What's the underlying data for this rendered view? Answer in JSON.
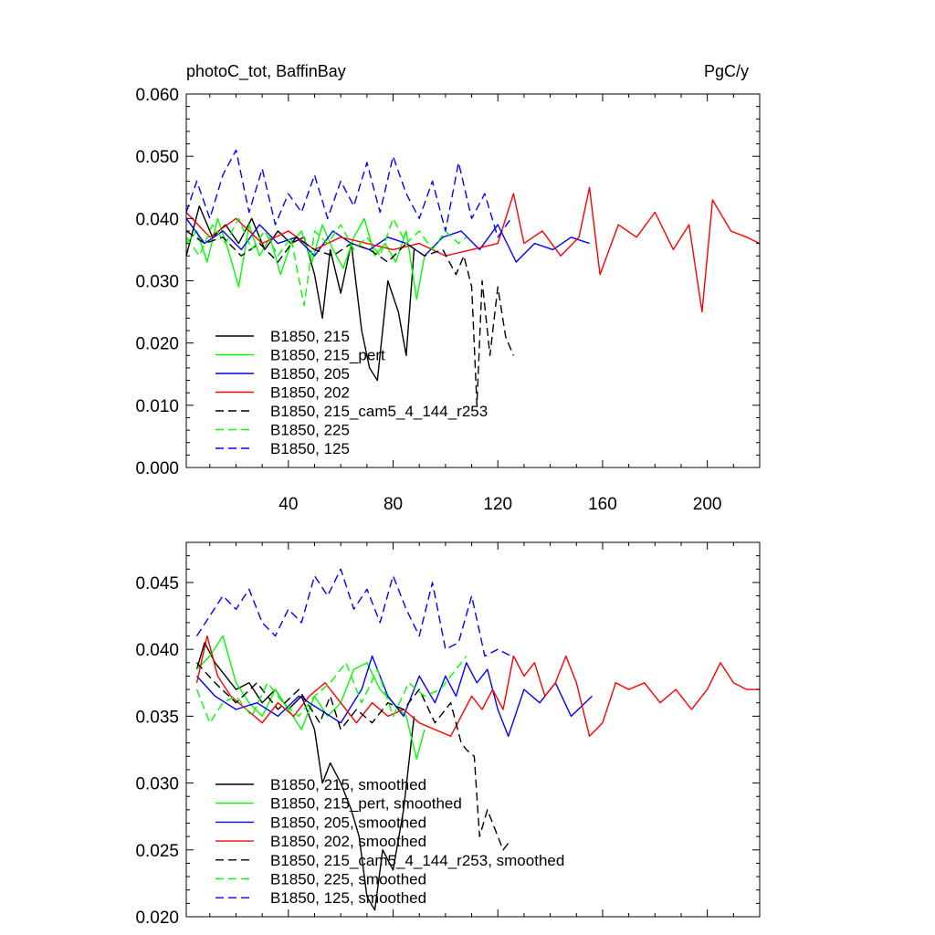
{
  "figure": {
    "title_left": "photoC_tot, BaffinBay",
    "title_right": "PgC/y"
  },
  "chart_data": [
    {
      "type": "line",
      "title": "photoC_tot, BaffinBay",
      "units_label": "PgC/y",
      "xlabel": "",
      "ylabel": "",
      "xlim": [
        1,
        220
      ],
      "ylim": [
        0.0,
        0.06
      ],
      "x_ticks": [
        40,
        80,
        120,
        160,
        200
      ],
      "x_tick_labels": [
        "40",
        "80",
        "120",
        "160",
        "200"
      ],
      "y_ticks": [
        0.0,
        0.01,
        0.02,
        0.03,
        0.04,
        0.05,
        0.06
      ],
      "y_tick_labels": [
        "0.000",
        "0.010",
        "0.020",
        "0.030",
        "0.040",
        "0.050",
        "0.060"
      ],
      "grid": false,
      "legend_position": "bottom-left",
      "series": [
        {
          "name": "B1850, 215",
          "color": "#000000",
          "dash": "solid",
          "x": [
            1,
            6,
            11,
            16,
            21,
            26,
            31,
            36,
            41,
            46,
            50,
            53,
            56,
            60,
            64,
            68,
            71,
            74,
            78,
            82,
            85,
            88
          ],
          "y": [
            0.034,
            0.042,
            0.037,
            0.039,
            0.036,
            0.04,
            0.035,
            0.038,
            0.036,
            0.037,
            0.031,
            0.024,
            0.035,
            0.028,
            0.036,
            0.022,
            0.016,
            0.014,
            0.03,
            0.025,
            0.018,
            0.035
          ]
        },
        {
          "name": "B1850, 215_pert",
          "color": "#00ff00",
          "dash": "solid",
          "x": [
            1,
            5,
            9,
            13,
            17,
            21,
            25,
            29,
            33,
            37,
            41,
            45,
            49,
            53,
            57,
            61,
            65,
            69,
            73,
            77,
            81,
            85,
            89,
            92
          ],
          "y": [
            0.036,
            0.038,
            0.033,
            0.04,
            0.035,
            0.029,
            0.039,
            0.034,
            0.037,
            0.031,
            0.036,
            0.038,
            0.033,
            0.039,
            0.035,
            0.032,
            0.037,
            0.04,
            0.034,
            0.036,
            0.033,
            0.038,
            0.027,
            0.034
          ]
        },
        {
          "name": "B1850, 205",
          "color": "#0000ff",
          "dash": "solid",
          "x": [
            1,
            8,
            15,
            22,
            29,
            36,
            43,
            50,
            57,
            64,
            71,
            78,
            85,
            92,
            99,
            106,
            113,
            120,
            127,
            134,
            141,
            148,
            155
          ],
          "y": [
            0.04,
            0.036,
            0.038,
            0.035,
            0.039,
            0.036,
            0.037,
            0.034,
            0.038,
            0.036,
            0.035,
            0.037,
            0.036,
            0.034,
            0.037,
            0.038,
            0.035,
            0.039,
            0.033,
            0.036,
            0.035,
            0.037,
            0.036
          ]
        },
        {
          "name": "B1850, 202",
          "color": "#ff0000",
          "dash": "solid",
          "x": [
            1,
            10,
            20,
            30,
            40,
            50,
            60,
            70,
            80,
            90,
            100,
            110,
            120,
            126,
            130,
            137,
            144,
            151,
            155,
            159,
            166,
            173,
            180,
            187,
            193,
            198,
            202,
            209,
            215,
            220
          ],
          "y": [
            0.041,
            0.037,
            0.04,
            0.036,
            0.038,
            0.035,
            0.037,
            0.036,
            0.035,
            0.036,
            0.034,
            0.035,
            0.036,
            0.044,
            0.036,
            0.038,
            0.034,
            0.037,
            0.045,
            0.031,
            0.039,
            0.037,
            0.041,
            0.035,
            0.039,
            0.025,
            0.043,
            0.038,
            0.037,
            0.036
          ]
        },
        {
          "name": "B1850, 215_cam5_4_144_r253",
          "color": "#000000",
          "dash": "dashed",
          "x": [
            1,
            8,
            15,
            22,
            29,
            36,
            43,
            50,
            57,
            64,
            71,
            78,
            85,
            92,
            99,
            104,
            107,
            110,
            112,
            114,
            117,
            120,
            123,
            126
          ],
          "y": [
            0.038,
            0.036,
            0.037,
            0.034,
            0.036,
            0.033,
            0.037,
            0.035,
            0.034,
            0.036,
            0.035,
            0.033,
            0.036,
            0.034,
            0.035,
            0.031,
            0.034,
            0.029,
            0.01,
            0.03,
            0.018,
            0.029,
            0.021,
            0.018
          ]
        },
        {
          "name": "B1850, 225",
          "color": "#00ff00",
          "dash": "dashed",
          "x": [
            1,
            6,
            11,
            16,
            21,
            26,
            31,
            36,
            41,
            46,
            50,
            55,
            60,
            65,
            70,
            75,
            80,
            85,
            90,
            95,
            100,
            105,
            108
          ],
          "y": [
            0.037,
            0.034,
            0.039,
            0.036,
            0.04,
            0.035,
            0.038,
            0.034,
            0.037,
            0.026,
            0.038,
            0.036,
            0.039,
            0.035,
            0.037,
            0.034,
            0.04,
            0.036,
            0.038,
            0.035,
            0.038,
            0.036,
            0.037
          ]
        },
        {
          "name": "B1850, 125",
          "color": "#0000ff",
          "dash": "dashed",
          "x": [
            1,
            5,
            10,
            15,
            20,
            25,
            30,
            35,
            40,
            45,
            50,
            55,
            60,
            65,
            70,
            75,
            80,
            85,
            90,
            95,
            100,
            105,
            110,
            115,
            120,
            125
          ],
          "y": [
            0.041,
            0.046,
            0.04,
            0.047,
            0.051,
            0.041,
            0.048,
            0.039,
            0.044,
            0.041,
            0.047,
            0.04,
            0.046,
            0.042,
            0.049,
            0.041,
            0.05,
            0.044,
            0.04,
            0.046,
            0.038,
            0.049,
            0.04,
            0.044,
            0.037,
            0.04
          ]
        }
      ]
    },
    {
      "type": "line",
      "title": "",
      "xlabel": "",
      "ylabel": "",
      "xlim": [
        1,
        220
      ],
      "ylim": [
        0.02,
        0.048
      ],
      "x_ticks": [
        40,
        80,
        120,
        160,
        200
      ],
      "x_tick_labels": [],
      "y_ticks": [
        0.02,
        0.025,
        0.03,
        0.035,
        0.04,
        0.045
      ],
      "y_tick_labels": [
        "0.020",
        "0.025",
        "0.030",
        "0.035",
        "0.040",
        "0.045"
      ],
      "grid": false,
      "legend_position": "bottom-left",
      "series": [
        {
          "name": "B1850, 215, smoothed",
          "color": "#000000",
          "dash": "solid",
          "x": [
            5,
            8,
            12,
            16,
            20,
            25,
            30,
            35,
            40,
            45,
            48,
            50,
            53,
            56,
            60,
            64,
            67,
            70,
            73,
            76,
            80,
            84,
            88
          ],
          "y": [
            0.0385,
            0.0405,
            0.039,
            0.038,
            0.037,
            0.0375,
            0.036,
            0.037,
            0.0355,
            0.0365,
            0.035,
            0.034,
            0.03,
            0.0315,
            0.03,
            0.028,
            0.026,
            0.0215,
            0.0205,
            0.025,
            0.0235,
            0.028,
            0.035
          ]
        },
        {
          "name": "B1850, 215_pert, smoothed",
          "color": "#00ff00",
          "dash": "solid",
          "x": [
            5,
            10,
            15,
            20,
            25,
            30,
            35,
            40,
            45,
            50,
            55,
            60,
            65,
            70,
            75,
            80,
            85,
            89,
            92
          ],
          "y": [
            0.0385,
            0.0395,
            0.041,
            0.0375,
            0.036,
            0.035,
            0.037,
            0.0355,
            0.034,
            0.0365,
            0.035,
            0.036,
            0.0385,
            0.039,
            0.037,
            0.036,
            0.035,
            0.0318,
            0.034
          ]
        },
        {
          "name": "B1850, 205, smoothed",
          "color": "#0000ff",
          "dash": "solid",
          "x": [
            5,
            12,
            20,
            28,
            36,
            44,
            52,
            60,
            68,
            72,
            78,
            84,
            90,
            96,
            100,
            104,
            108,
            112,
            116,
            120,
            124,
            130,
            136,
            142,
            148,
            156
          ],
          "y": [
            0.038,
            0.0365,
            0.0355,
            0.036,
            0.035,
            0.0365,
            0.0355,
            0.0345,
            0.037,
            0.0395,
            0.0365,
            0.035,
            0.038,
            0.036,
            0.038,
            0.0365,
            0.039,
            0.0375,
            0.0385,
            0.0355,
            0.0335,
            0.037,
            0.036,
            0.0375,
            0.035,
            0.0365
          ]
        },
        {
          "name": "B1850, 202, smoothed",
          "color": "#ff0000",
          "dash": "solid",
          "x": [
            5,
            9,
            13,
            18,
            24,
            30,
            36,
            42,
            48,
            54,
            60,
            66,
            72,
            78,
            84,
            90,
            96,
            102,
            106,
            110,
            114,
            118,
            122,
            126,
            130,
            134,
            138,
            142,
            146,
            150,
            155,
            160,
            165,
            170,
            176,
            182,
            188,
            194,
            200,
            205,
            210,
            215,
            220
          ],
          "y": [
            0.0375,
            0.041,
            0.038,
            0.0365,
            0.0355,
            0.0345,
            0.036,
            0.035,
            0.0365,
            0.0375,
            0.036,
            0.0345,
            0.036,
            0.035,
            0.0355,
            0.0345,
            0.034,
            0.0335,
            0.035,
            0.0365,
            0.0355,
            0.037,
            0.0355,
            0.0395,
            0.038,
            0.039,
            0.0365,
            0.0375,
            0.0395,
            0.0375,
            0.0335,
            0.0345,
            0.0375,
            0.037,
            0.0375,
            0.036,
            0.037,
            0.0355,
            0.037,
            0.039,
            0.0375,
            0.037,
            0.037
          ]
        },
        {
          "name": "B1850, 215_cam5_4_144_r253, smoothed",
          "color": "#000000",
          "dash": "dashed",
          "x": [
            5,
            12,
            20,
            28,
            36,
            44,
            52,
            56,
            60,
            66,
            72,
            78,
            84,
            90,
            96,
            102,
            106,
            108,
            111,
            113,
            116,
            119,
            122,
            124
          ],
          "y": [
            0.039,
            0.0375,
            0.036,
            0.0375,
            0.0355,
            0.037,
            0.0345,
            0.0365,
            0.034,
            0.0355,
            0.0345,
            0.036,
            0.0355,
            0.037,
            0.0345,
            0.036,
            0.033,
            0.0325,
            0.032,
            0.026,
            0.028,
            0.0265,
            0.025,
            0.0255
          ]
        },
        {
          "name": "B1850, 225, smoothed",
          "color": "#00ff00",
          "dash": "dashed",
          "x": [
            5,
            10,
            15,
            20,
            26,
            32,
            38,
            44,
            50,
            56,
            62,
            68,
            74,
            80,
            86,
            92,
            98,
            104,
            108
          ],
          "y": [
            0.037,
            0.0345,
            0.036,
            0.0365,
            0.035,
            0.0375,
            0.036,
            0.035,
            0.0365,
            0.0375,
            0.039,
            0.036,
            0.0385,
            0.035,
            0.0375,
            0.0365,
            0.037,
            0.0385,
            0.0395
          ]
        },
        {
          "name": "B1850, 125, smoothed",
          "color": "#0000ff",
          "dash": "dashed",
          "x": [
            5,
            10,
            15,
            20,
            25,
            30,
            35,
            40,
            45,
            50,
            55,
            60,
            65,
            70,
            75,
            80,
            85,
            90,
            95,
            100,
            105,
            110,
            115,
            120,
            125
          ],
          "y": [
            0.041,
            0.0425,
            0.044,
            0.043,
            0.0445,
            0.042,
            0.041,
            0.043,
            0.042,
            0.0455,
            0.044,
            0.046,
            0.043,
            0.0445,
            0.042,
            0.0455,
            0.043,
            0.041,
            0.045,
            0.04,
            0.0405,
            0.044,
            0.0395,
            0.04,
            0.0395
          ]
        }
      ]
    }
  ]
}
